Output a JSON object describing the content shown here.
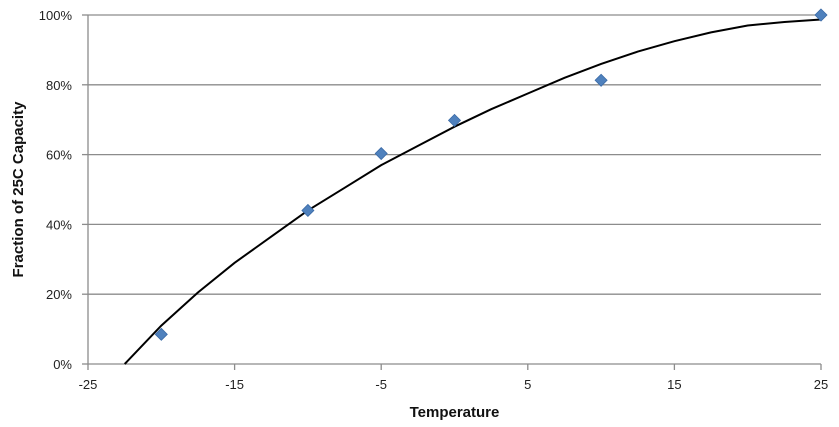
{
  "chart_data": {
    "type": "scatter",
    "title": "",
    "xlabel": "Temperature",
    "ylabel": "Fraction of 25C Capacity",
    "xlim": [
      -25,
      25
    ],
    "ylim": [
      0,
      100
    ],
    "x_ticks": [
      -25,
      -15,
      -5,
      5,
      15,
      25
    ],
    "x_tick_labels": [
      "-25",
      "-15",
      "-5",
      "5",
      "15",
      "25"
    ],
    "y_ticks": [
      0,
      20,
      40,
      60,
      80,
      100
    ],
    "y_tick_labels": [
      "0%",
      "20%",
      "40%",
      "60%",
      "80%",
      "100%"
    ],
    "grid": "horizontal",
    "legend": "none",
    "series": [
      {
        "type": "scatter",
        "marker": "diamond",
        "color": "#4F81BD",
        "x": [
          -20,
          -10,
          -5,
          0,
          10,
          25
        ],
        "y": [
          8.5,
          44,
          60.3,
          69.8,
          81.3,
          100
        ]
      },
      {
        "type": "line",
        "trend": "fitted curve",
        "color": "#000000",
        "x": [
          -22.5,
          -20,
          -17.5,
          -15,
          -12.5,
          -10,
          -7.5,
          -5,
          -2.5,
          0,
          2.5,
          5,
          7.5,
          10,
          12.5,
          15,
          17.5,
          20,
          22.5,
          25
        ],
        "y": [
          0,
          11,
          20.5,
          29,
          36.5,
          44,
          50.5,
          57,
          62.5,
          68,
          73,
          77.5,
          82,
          86,
          89.5,
          92.5,
          95,
          97,
          98,
          98.7
        ]
      }
    ]
  }
}
